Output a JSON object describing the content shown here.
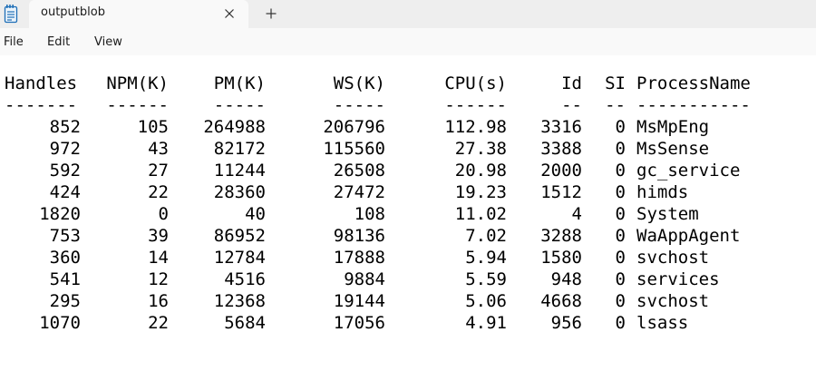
{
  "window": {
    "tab_title": "outputblob",
    "app_icon": "notepad-icon",
    "close_icon": "close-icon",
    "new_tab_icon": "plus-icon"
  },
  "menu": {
    "file": "File",
    "edit": "Edit",
    "view": "View"
  },
  "table": {
    "headers": [
      "Handles",
      "NPM(K)",
      "PM(K)",
      "WS(K)",
      "CPU(s)",
      "Id",
      "SI",
      "ProcessName"
    ],
    "separators": [
      "-------",
      "------",
      "-----",
      "-----",
      "------",
      "--",
      "--",
      "-----------"
    ],
    "rows": [
      [
        "852",
        "105",
        "264988",
        "206796",
        "112.98",
        "3316",
        "0",
        "MsMpEng"
      ],
      [
        "972",
        "43",
        "82172",
        "115560",
        "27.38",
        "3388",
        "0",
        "MsSense"
      ],
      [
        "592",
        "27",
        "11244",
        "26508",
        "20.98",
        "2000",
        "0",
        "gc_service"
      ],
      [
        "424",
        "22",
        "28360",
        "27472",
        "19.23",
        "1512",
        "0",
        "himds"
      ],
      [
        "1820",
        "0",
        "40",
        "108",
        "11.02",
        "4",
        "0",
        "System"
      ],
      [
        "753",
        "39",
        "86952",
        "98136",
        "7.02",
        "3288",
        "0",
        "WaAppAgent"
      ],
      [
        "360",
        "14",
        "12784",
        "17888",
        "5.94",
        "1580",
        "0",
        "svchost"
      ],
      [
        "541",
        "12",
        "4516",
        "9884",
        "5.59",
        "948",
        "0",
        "services"
      ],
      [
        "295",
        "16",
        "12368",
        "19144",
        "5.06",
        "4668",
        "0",
        "svchost"
      ],
      [
        "1070",
        "22",
        "5684",
        "17056",
        "4.91",
        "956",
        "0",
        "lsass"
      ]
    ]
  }
}
